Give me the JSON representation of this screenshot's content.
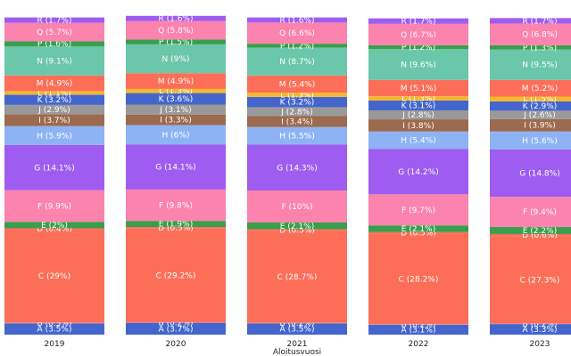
{
  "chart_data": {
    "type": "bar",
    "stacked": true,
    "normalized": true,
    "xlabel": "Aloitusvuosi",
    "ylabel": "",
    "ylim": [
      0,
      100
    ],
    "categories": [
      "2019",
      "2020",
      "2021",
      "2022",
      "2023"
    ],
    "series": [
      {
        "name": "A",
        "color": "#4466cc",
        "values": [
          3.5,
          3.7,
          3.5,
          3.1,
          3.3
        ]
      },
      {
        "name": "B",
        "color": "#f07a8a",
        "values": [
          0.3,
          0.2,
          0.2,
          0.2,
          0.2
        ]
      },
      {
        "name": "C",
        "color": "#fc6e58",
        "values": [
          29,
          29.2,
          28.7,
          28.2,
          27.3
        ]
      },
      {
        "name": "D",
        "color": "#fc6e58",
        "values": [
          0.4,
          0.5,
          0.5,
          0.5,
          0.6
        ]
      },
      {
        "name": "E",
        "color": "#3a9e4c",
        "values": [
          2,
          1.9,
          2.1,
          2.1,
          2.2
        ]
      },
      {
        "name": "F",
        "color": "#fb83ad",
        "values": [
          9.9,
          9.8,
          10,
          9.7,
          9.4
        ]
      },
      {
        "name": "G",
        "color": "#9e5cf0",
        "values": [
          14.1,
          14.1,
          14.3,
          14.2,
          14.8
        ]
      },
      {
        "name": "H",
        "color": "#8db3f5",
        "values": [
          5.9,
          6,
          5.5,
          5.4,
          5.6
        ]
      },
      {
        "name": "I",
        "color": "#9c6a4e",
        "values": [
          3.7,
          3.3,
          3.4,
          3.8,
          3.9
        ]
      },
      {
        "name": "J",
        "color": "#999999",
        "values": [
          2.9,
          3.1,
          2.8,
          2.8,
          2.6
        ]
      },
      {
        "name": "K",
        "color": "#4466cc",
        "values": [
          3.2,
          3.6,
          3.2,
          3.1,
          2.9
        ]
      },
      {
        "name": "L",
        "color": "#f5b82c",
        "values": [
          1.1,
          1.3,
          1.3,
          1.3,
          1.5
        ]
      },
      {
        "name": "M",
        "color": "#fc6e58",
        "values": [
          4.9,
          4.9,
          5.4,
          5.1,
          5.2
        ]
      },
      {
        "name": "N",
        "color": "#6bc7a9",
        "values": [
          9.1,
          9,
          8.7,
          9.6,
          9.5
        ]
      },
      {
        "name": "P",
        "color": "#3a9e4c",
        "values": [
          1.6,
          1.5,
          1.2,
          1.2,
          1.3
        ]
      },
      {
        "name": "Q",
        "color": "#fb83ad",
        "values": [
          5.7,
          5.8,
          6.6,
          6.7,
          6.8
        ]
      },
      {
        "name": "R",
        "color": "#9e5cf0",
        "values": [
          1.7,
          1.6,
          1.6,
          1.7,
          1.7
        ]
      }
    ]
  }
}
